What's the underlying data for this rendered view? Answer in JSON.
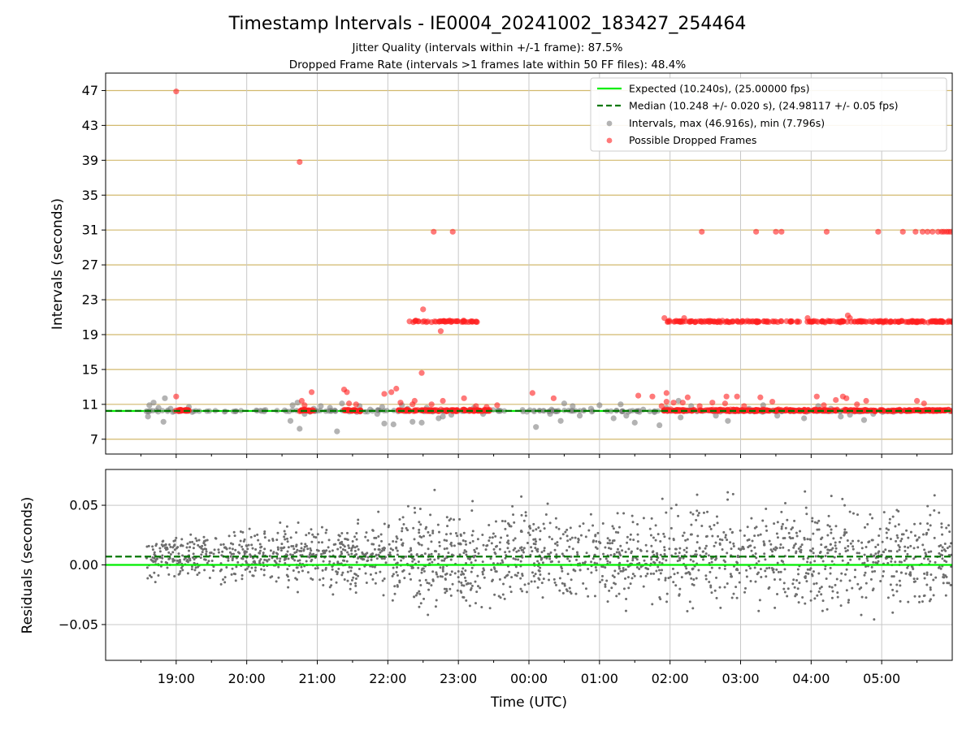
{
  "chart_data": {
    "type": "scatter",
    "title": "Timestamp Intervals - IE0004_20241002_183427_254464",
    "subtitles": [
      "Jitter Quality (intervals within +/-1 frame): 87.5%",
      "Dropped Frame Rate (intervals >1 frames late within 50 FF files): 48.4%"
    ],
    "xlabel": "Time (UTC)",
    "x_range_hours": [
      18.0,
      6.0
    ],
    "x_ticks": [
      "19:00",
      "20:00",
      "21:00",
      "22:00",
      "23:00",
      "00:00",
      "01:00",
      "02:00",
      "03:00",
      "04:00",
      "05:00"
    ],
    "top_panel": {
      "ylabel": "Intervals (seconds)",
      "ylim": [
        5.3,
        49.0
      ],
      "y_ticks": [
        7,
        11,
        15,
        19,
        23,
        27,
        31,
        35,
        39,
        43,
        47
      ],
      "grid": true,
      "legend_position": "upper right",
      "series": [
        {
          "name": "Expected (10.240s), (25.00000 fps)",
          "kind": "hline",
          "value": 10.24,
          "color": "#00ee00"
        },
        {
          "name": "Median (10.248 +/- 0.020 s), (24.98117 +/- 0.05 fps)",
          "kind": "hline-dashed",
          "value": 10.248,
          "color": "#007700"
        },
        {
          "name": "Intervals, max (46.916s), min (7.796s)",
          "kind": "points",
          "color": "#808080",
          "points": [
            [
              18.58,
              10.2
            ],
            [
              18.6,
              9.6
            ],
            [
              18.62,
              10.9
            ],
            [
              18.68,
              11.2
            ],
            [
              18.75,
              10.6
            ],
            [
              18.82,
              9.0
            ],
            [
              18.84,
              11.7
            ],
            [
              18.92,
              10.5
            ],
            [
              19.18,
              10.7
            ],
            [
              20.62,
              9.1
            ],
            [
              20.65,
              10.9
            ],
            [
              20.72,
              11.2
            ],
            [
              20.75,
              8.2
            ],
            [
              20.82,
              9.9
            ],
            [
              20.95,
              10.5
            ],
            [
              21.05,
              10.8
            ],
            [
              21.18,
              10.6
            ],
            [
              21.28,
              7.9
            ],
            [
              21.35,
              11.1
            ],
            [
              21.42,
              10.3
            ],
            [
              21.6,
              10.8
            ],
            [
              21.75,
              10.4
            ],
            [
              21.85,
              9.9
            ],
            [
              21.92,
              10.7
            ],
            [
              21.95,
              8.8
            ],
            [
              22.08,
              8.7
            ],
            [
              22.2,
              10.9
            ],
            [
              22.28,
              10.5
            ],
            [
              22.35,
              9.0
            ],
            [
              22.48,
              8.9
            ],
            [
              22.55,
              10.6
            ],
            [
              22.65,
              10.3
            ],
            [
              22.72,
              9.4
            ],
            [
              22.78,
              9.6
            ],
            [
              22.9,
              9.8
            ],
            [
              23.08,
              10.4
            ],
            [
              23.22,
              10.6
            ],
            [
              23.35,
              9.9
            ],
            [
              24.1,
              8.4
            ],
            [
              24.3,
              9.9
            ],
            [
              24.32,
              10.4
            ],
            [
              24.38,
              10.2
            ],
            [
              24.45,
              9.1
            ],
            [
              24.5,
              11.1
            ],
            [
              24.62,
              10.8
            ],
            [
              24.72,
              9.7
            ],
            [
              24.88,
              10.5
            ],
            [
              25.0,
              10.9
            ],
            [
              25.2,
              9.4
            ],
            [
              25.3,
              11.0
            ],
            [
              25.38,
              9.7
            ],
            [
              25.5,
              8.9
            ],
            [
              25.62,
              10.4
            ],
            [
              25.78,
              10.1
            ],
            [
              25.85,
              8.6
            ],
            [
              25.95,
              10.6
            ],
            [
              26.12,
              11.4
            ],
            [
              26.15,
              9.5
            ],
            [
              26.3,
              10.8
            ],
            [
              26.65,
              9.7
            ],
            [
              26.75,
              10.3
            ],
            [
              26.82,
              9.1
            ],
            [
              26.92,
              10.2
            ],
            [
              27.12,
              10.5
            ],
            [
              27.32,
              10.9
            ],
            [
              27.52,
              9.7
            ],
            [
              27.72,
              10.3
            ],
            [
              27.9,
              9.4
            ],
            [
              28.1,
              10.8
            ],
            [
              28.28,
              10.5
            ],
            [
              28.42,
              9.6
            ],
            [
              28.55,
              9.8
            ],
            [
              28.65,
              10.2
            ],
            [
              28.75,
              9.2
            ],
            [
              28.88,
              9.9
            ]
          ]
        },
        {
          "name": "Possible Dropped Frames",
          "kind": "points",
          "color": "#ff1f1f",
          "points": []
        }
      ],
      "dropped_points": [
        [
          19.0,
          46.9
        ],
        [
          20.75,
          38.8
        ],
        [
          19.0,
          11.9
        ],
        [
          20.78,
          11.4
        ],
        [
          20.82,
          10.9
        ],
        [
          20.92,
          12.4
        ],
        [
          21.38,
          12.7
        ],
        [
          21.42,
          12.4
        ],
        [
          21.45,
          11.1
        ],
        [
          21.55,
          11.0
        ],
        [
          21.95,
          12.2
        ],
        [
          22.05,
          12.4
        ],
        [
          22.12,
          12.8
        ],
        [
          22.18,
          11.2
        ],
        [
          22.35,
          11.0
        ],
        [
          22.48,
          14.6
        ],
        [
          22.5,
          21.9
        ],
        [
          22.38,
          11.4
        ],
        [
          22.62,
          11.0
        ],
        [
          22.78,
          11.4
        ],
        [
          22.75,
          19.4
        ],
        [
          22.65,
          30.8
        ],
        [
          22.92,
          30.8
        ],
        [
          23.08,
          11.7
        ],
        [
          23.25,
          10.8
        ],
        [
          23.4,
          10.7
        ],
        [
          23.55,
          10.9
        ],
        [
          24.05,
          12.3
        ],
        [
          24.35,
          11.7
        ],
        [
          25.55,
          12.0
        ],
        [
          25.75,
          11.9
        ],
        [
          25.95,
          11.3
        ],
        [
          25.88,
          10.8
        ],
        [
          25.92,
          20.9
        ],
        [
          25.95,
          12.3
        ],
        [
          26.05,
          11.2
        ],
        [
          26.18,
          11.2
        ],
        [
          26.2,
          20.9
        ],
        [
          26.25,
          11.8
        ],
        [
          26.45,
          30.8
        ],
        [
          26.42,
          10.8
        ],
        [
          26.6,
          11.2
        ],
        [
          26.78,
          11.1
        ],
        [
          26.8,
          11.9
        ],
        [
          26.95,
          11.9
        ],
        [
          27.05,
          10.8
        ],
        [
          27.22,
          30.8
        ],
        [
          27.28,
          11.8
        ],
        [
          27.5,
          30.8
        ],
        [
          27.58,
          30.8
        ],
        [
          27.45,
          11.3
        ],
        [
          27.72,
          20.5
        ],
        [
          27.95,
          20.9
        ],
        [
          28.08,
          11.9
        ],
        [
          28.18,
          10.9
        ],
        [
          28.22,
          30.8
        ],
        [
          28.35,
          11.5
        ],
        [
          28.45,
          11.9
        ],
        [
          28.5,
          11.7
        ],
        [
          28.52,
          21.2
        ],
        [
          28.55,
          20.9
        ],
        [
          28.65,
          11.0
        ],
        [
          28.78,
          11.4
        ],
        [
          28.95,
          30.8
        ],
        [
          29.3,
          30.8
        ],
        [
          29.5,
          11.4
        ],
        [
          29.6,
          11.1
        ],
        [
          29.48,
          30.8
        ],
        [
          29.58,
          30.8
        ],
        [
          29.65,
          30.8
        ],
        [
          29.72,
          30.8
        ],
        [
          29.8,
          30.8
        ],
        [
          29.88,
          30.8
        ],
        [
          29.95,
          30.8
        ],
        [
          29.92,
          30.8
        ],
        [
          29.85,
          30.8
        ],
        [
          29.98,
          30.8
        ]
      ],
      "dropped_bands": [
        {
          "from": 18.98,
          "to": 19.18,
          "value": 10.3,
          "density": 28
        },
        {
          "from": 20.75,
          "to": 20.95,
          "value": 10.3,
          "density": 26
        },
        {
          "from": 21.38,
          "to": 21.62,
          "value": 10.3,
          "density": 30
        },
        {
          "from": 22.15,
          "to": 23.45,
          "value": 10.3,
          "density": 120
        },
        {
          "from": 22.3,
          "to": 23.28,
          "value": 20.5,
          "density": 48
        },
        {
          "from": 25.9,
          "to": 30.0,
          "value": 10.3,
          "density": 360
        },
        {
          "from": 25.95,
          "to": 30.0,
          "value": 20.5,
          "density": 220
        }
      ]
    },
    "bottom_panel": {
      "ylabel": "Residuals (seconds)",
      "ylim": [
        -0.08,
        0.08
      ],
      "y_ticks": [
        -0.05,
        0.0,
        0.05
      ],
      "y_tick_labels": [
        "−0.05",
        "0.00",
        "0.05"
      ],
      "expected_residual": 0.0,
      "median_residual": 0.007,
      "residual_points_note": "residual scatter ~ 2000 points spanning 18:35 to 06:00, spread growing from about 0.01 s to 0.03 s"
    }
  }
}
